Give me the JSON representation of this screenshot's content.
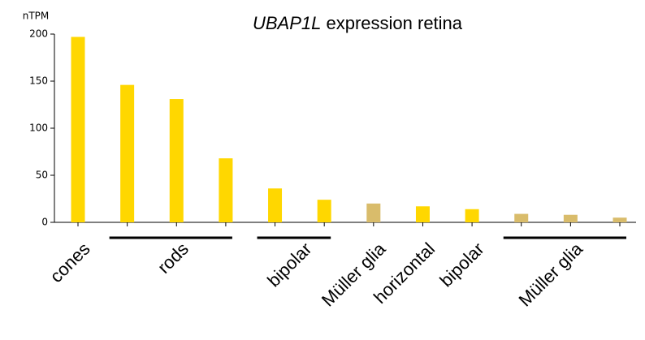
{
  "chart_data": {
    "type": "bar",
    "title_gene": "UBAP1L",
    "title": "expression retina",
    "ylabel": "nTPM",
    "categories": [
      "cones",
      "rods",
      null,
      null,
      "bipolar",
      null,
      "Müller glia",
      "horizontal",
      "bipolar",
      "Müller glia",
      null,
      null
    ],
    "values": [
      197,
      146,
      131,
      68,
      36,
      24,
      20,
      17,
      14,
      9,
      8,
      5
    ],
    "colors": [
      "#ffd700",
      "#ffd700",
      "#ffd700",
      "#ffd700",
      "#ffd700",
      "#ffd700",
      "#d9bc6b",
      "#ffd700",
      "#ffd700",
      "#d9bc6b",
      "#d9bc6b",
      "#d9bc6b"
    ],
    "ylim": [
      0,
      200
    ],
    "yticks": [
      0,
      50,
      100,
      150,
      200
    ],
    "grid": false
  }
}
